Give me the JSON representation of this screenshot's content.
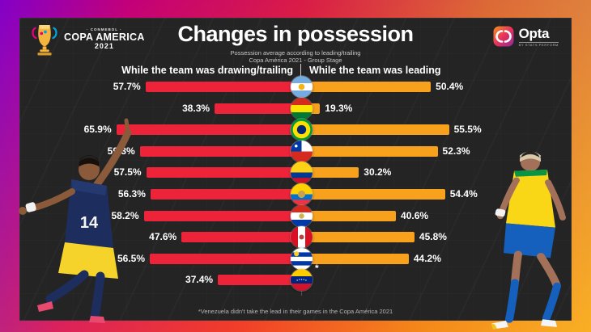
{
  "branding": {
    "copa_logo": {
      "conmebol": "· CONMEBOL ·",
      "title": "COPA AMERICA",
      "year": "2021"
    },
    "opta_logo": {
      "name": "Opta",
      "tagline": "BY STATS PERFORM"
    }
  },
  "header": {
    "title": "Changes in possession",
    "subtitle_line1": "Possession average according to leading/trailing",
    "subtitle_line2": "Copa América 2021 - Group Stage"
  },
  "chart_data": {
    "type": "bar",
    "variant": "diverging-horizontal",
    "left_header": "While the team was drawing/trailing",
    "right_header": "While the team was leading",
    "unit": "%",
    "colors": {
      "trailing_bar": "#ed2439",
      "leading_bar": "#f7a11c",
      "panel_bg": "#242424",
      "value_text": "#ffffff"
    },
    "rows": [
      {
        "country": "Argentina",
        "trailing": 57.7,
        "leading": 50.4,
        "trailing_label": "57.7%",
        "leading_label": "50.4%",
        "flag": {
          "stripes": [
            "#74acdf",
            "#ffffff",
            "#74acdf"
          ],
          "emblem": "#f6b40e",
          "emblem_r": 0.14
        }
      },
      {
        "country": "Bolivia",
        "trailing": 38.3,
        "leading": 19.3,
        "trailing_label": "38.3%",
        "leading_label": "19.3%",
        "flag": {
          "stripes": [
            "#d52b1e",
            "#f9e300",
            "#007934"
          ]
        }
      },
      {
        "country": "Brazil",
        "trailing": 65.9,
        "leading": 55.5,
        "trailing_label": "65.9%",
        "leading_label": "55.5%",
        "flag": {
          "stripes": [
            "#009c3b"
          ],
          "emblem": "#fedf00",
          "emblem_r": 0.4,
          "emblem2": "#002776",
          "emblem2_r": 0.21
        }
      },
      {
        "country": "Chile",
        "trailing": 59.3,
        "leading": 52.3,
        "trailing_label": "59.3%",
        "leading_label": "52.3%",
        "flag": {
          "stripes": [
            "#ffffff",
            "#d52b1e"
          ],
          "canton": "#0039a6",
          "canton_star": "#ffffff"
        }
      },
      {
        "country": "Colombia",
        "trailing": 57.5,
        "leading": 30.2,
        "trailing_label": "57.5%",
        "leading_label": "30.2%",
        "flag": {
          "stripes": [
            "#fcd116",
            "#fcd116",
            "#003893",
            "#ce1126"
          ]
        }
      },
      {
        "country": "Ecuador",
        "trailing": 56.3,
        "leading": 54.4,
        "trailing_label": "56.3%",
        "leading_label": "54.4%",
        "flag": {
          "stripes": [
            "#ffd100",
            "#ffd100",
            "#0072ce",
            "#ef3340"
          ],
          "emblem": "#c8a24b",
          "emblem_r": 0.17
        }
      },
      {
        "country": "Paraguay",
        "trailing": 58.2,
        "leading": 40.6,
        "trailing_label": "58.2%",
        "leading_label": "40.6%",
        "flag": {
          "stripes": [
            "#d52b1e",
            "#ffffff",
            "#0038a8"
          ],
          "emblem": "#c8b653",
          "emblem_r": 0.12
        }
      },
      {
        "country": "Peru",
        "trailing": 47.6,
        "leading": 45.8,
        "trailing_label": "47.6%",
        "leading_label": "45.8%",
        "flag": {
          "stripes": [
            "#d91023",
            "#ffffff",
            "#d91023"
          ],
          "dir": "v",
          "emblem": "#b5443f",
          "emblem_r": 0.11
        }
      },
      {
        "country": "Uruguay",
        "trailing": 56.5,
        "leading": 44.2,
        "trailing_label": "56.5%",
        "leading_label": "44.2%",
        "flag": {
          "stripes": [
            "#ffffff",
            "#0038a8",
            "#ffffff",
            "#0038a8",
            "#ffffff"
          ],
          "sun": "#fcd116"
        }
      },
      {
        "country": "Venezuela",
        "trailing": 37.4,
        "leading": null,
        "trailing_label": "37.4%",
        "leading_label": null,
        "note": "*",
        "flag": {
          "stripes": [
            "#ffcc00",
            "#00247d",
            "#cf142b"
          ],
          "stars": "#ffffff"
        }
      }
    ],
    "footnote": "*Venezuela didn't take the lead in their games in the Copa América 2021"
  }
}
